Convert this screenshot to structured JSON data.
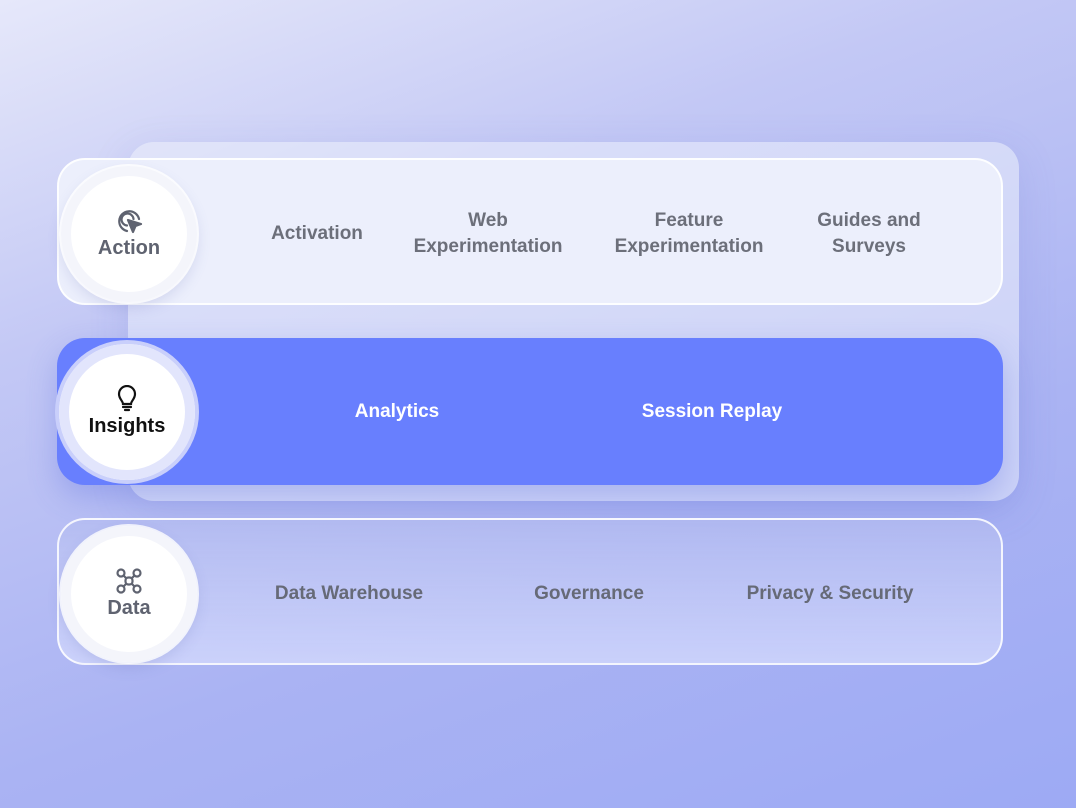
{
  "rows": [
    {
      "label": "Action",
      "icon": "cursor-click-icon",
      "items": [
        "Activation",
        "Web\nExperimentation",
        "Feature\nExperimentation",
        "Guides and\nSurveys"
      ]
    },
    {
      "label": "Insights",
      "icon": "lightbulb-icon",
      "active": true,
      "items": [
        "Analytics",
        "Session Replay"
      ]
    },
    {
      "label": "Data",
      "icon": "nodes-icon",
      "items": [
        "Data Warehouse",
        "Governance",
        "Privacy & Security"
      ]
    }
  ],
  "colors": {
    "active_row": "#687ffe",
    "text": "#6c6f7a"
  }
}
